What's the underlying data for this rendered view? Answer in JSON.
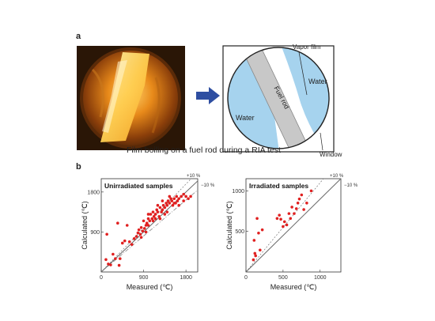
{
  "panel_a": {
    "label": "a",
    "caption": "Film boiling on a fuel rod during a RIA test",
    "diagram": {
      "water_left": "Water",
      "water_right": "Water",
      "fuel_rod": "Fuel rod",
      "vapor_film": "Vapor film",
      "window": "Window"
    },
    "colors": {
      "water": "#a6d3ee",
      "rod": "#c8c8c8",
      "arrow": "#2e4ea1"
    }
  },
  "panel_b": {
    "label": "b"
  },
  "chart_data": [
    {
      "type": "scatter",
      "title": "Unirradiated samples",
      "xlabel": "Measured (℃)",
      "ylabel": "Calculated (℃)",
      "xlim": [
        0,
        2050
      ],
      "ylim": [
        0,
        2100
      ],
      "xticks": [
        "0",
        "900",
        "1800"
      ],
      "yticks": [
        "900",
        "1800"
      ],
      "bands": [
        "+10 %",
        "−10 %"
      ],
      "marker_color": "#e02020",
      "points": [
        [
          100,
          280
        ],
        [
          120,
          850
        ],
        [
          150,
          180
        ],
        [
          200,
          160
        ],
        [
          250,
          400
        ],
        [
          300,
          300
        ],
        [
          350,
          1100
        ],
        [
          380,
          150
        ],
        [
          400,
          300
        ],
        [
          450,
          650
        ],
        [
          500,
          700
        ],
        [
          550,
          1050
        ],
        [
          600,
          680
        ],
        [
          650,
          620
        ],
        [
          700,
          750
        ],
        [
          750,
          800
        ],
        [
          780,
          880
        ],
        [
          800,
          950
        ],
        [
          830,
          850
        ],
        [
          850,
          1000
        ],
        [
          880,
          920
        ],
        [
          900,
          1150
        ],
        [
          920,
          980
        ],
        [
          950,
          1050
        ],
        [
          970,
          1100
        ],
        [
          1000,
          1200
        ],
        [
          1000,
          1050
        ],
        [
          1030,
          1150
        ],
        [
          1050,
          1300
        ],
        [
          1080,
          1200
        ],
        [
          1100,
          1350
        ],
        [
          1120,
          1250
        ],
        [
          1150,
          1300
        ],
        [
          1150,
          1200
        ],
        [
          1180,
          1400
        ],
        [
          1200,
          1350
        ],
        [
          1230,
          1250
        ],
        [
          1250,
          1450
        ],
        [
          1280,
          1350
        ],
        [
          1300,
          1400
        ],
        [
          1320,
          1500
        ],
        [
          1350,
          1450
        ],
        [
          1380,
          1550
        ],
        [
          1400,
          1500
        ],
        [
          1420,
          1600
        ],
        [
          1450,
          1550
        ],
        [
          1480,
          1650
        ],
        [
          1500,
          1600
        ],
        [
          1520,
          1500
        ],
        [
          1550,
          1650
        ],
        [
          1580,
          1550
        ],
        [
          1600,
          1700
        ],
        [
          1620,
          1600
        ],
        [
          1650,
          1650
        ],
        [
          1700,
          1700
        ],
        [
          1750,
          1600
        ],
        [
          1800,
          1700
        ],
        [
          1850,
          1650
        ],
        [
          1900,
          1700
        ],
        [
          1400,
          1350
        ],
        [
          1300,
          1600
        ],
        [
          1450,
          1700
        ],
        [
          1200,
          1500
        ],
        [
          1100,
          1150
        ],
        [
          1000,
          1300
        ],
        [
          850,
          780
        ],
        [
          950,
          900
        ],
        [
          1350,
          1300
        ],
        [
          1250,
          1200
        ],
        [
          1550,
          1550
        ],
        [
          1650,
          1500
        ],
        [
          1750,
          1750
        ]
      ]
    },
    {
      "type": "scatter",
      "title": "Irradiated samples",
      "xlabel": "Measured (℃)",
      "ylabel": "Calculated (℃)",
      "xlim": [
        0,
        1280
      ],
      "ylim": [
        0,
        1150
      ],
      "xticks": [
        "0",
        "500",
        "1000"
      ],
      "yticks": [
        "500",
        "1000"
      ],
      "bands": [
        "+10 %",
        "−10 %"
      ],
      "marker_color": "#e02020",
      "points": [
        [
          100,
          150
        ],
        [
          110,
          390
        ],
        [
          120,
          230
        ],
        [
          130,
          200
        ],
        [
          150,
          660
        ],
        [
          170,
          480
        ],
        [
          190,
          270
        ],
        [
          220,
          520
        ],
        [
          420,
          660
        ],
        [
          450,
          700
        ],
        [
          470,
          650
        ],
        [
          500,
          560
        ],
        [
          520,
          620
        ],
        [
          550,
          580
        ],
        [
          580,
          720
        ],
        [
          600,
          660
        ],
        [
          620,
          800
        ],
        [
          650,
          720
        ],
        [
          680,
          780
        ],
        [
          700,
          850
        ],
        [
          720,
          900
        ],
        [
          750,
          950
        ],
        [
          780,
          770
        ],
        [
          820,
          850
        ],
        [
          880,
          1000
        ]
      ]
    }
  ]
}
